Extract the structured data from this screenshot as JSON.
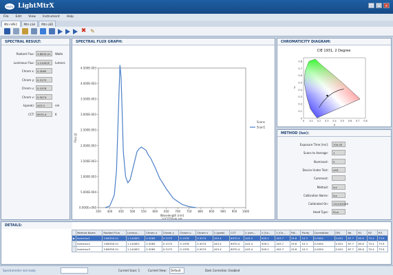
{
  "window": {
    "logo_text": "isuzu",
    "title": "LightMtrX",
    "controls": [
      "–",
      "□",
      "×"
    ]
  },
  "menu": [
    "File",
    "Edit",
    "View",
    "Instrument",
    "Help"
  ],
  "tabs": [
    "Mtri-SPEC",
    "Mtri-LSA",
    "Mtri-LED"
  ],
  "spectral_result": {
    "title": "SPECTRAL RESULT:",
    "rows": [
      {
        "label": "Radiant Flux:",
        "value": "3.8635-01",
        "unit": "Watts"
      },
      {
        "label": "Luminous Flux:",
        "value": "1.14401E",
        "unit": "lumens"
      },
      {
        "label": "Chrom x:",
        "value": "0.3065",
        "unit": ""
      },
      {
        "label": "Chrom y:",
        "value": "0.3175",
        "unit": ""
      },
      {
        "label": "Chrom u:",
        "value": "0.1978",
        "unit": ""
      },
      {
        "label": "Chrom v:",
        "value": "0.3074",
        "unit": ""
      },
      {
        "label": "λ(peak):",
        "value": "443.4",
        "unit": "nm"
      },
      {
        "label": "CCT:",
        "value": "6970.4",
        "unit": "K"
      }
    ]
  },
  "chart_panel_title": "SPECTRAL FLUX GRAPH:",
  "chart_data": {
    "type": "line",
    "xlabel": "Wavelength [nm]",
    "xlabel2": "LUCOThigh.set",
    "ylabel": "Flux (J)",
    "xlim": [
      350,
      1000
    ],
    "ylim": [
      0,
      0.0045
    ],
    "x_ticks": [
      "350",
      "400",
      "450",
      "500",
      "550",
      "600",
      "650",
      "700",
      "750",
      "800",
      "850",
      "900",
      "950",
      "1000"
    ],
    "y_ticks": [
      "0.000E+000",
      "5.000E-004",
      "1.000E-003",
      "1.500E-003",
      "2.000E-003",
      "2.500E-003",
      "3.000E-003",
      "3.500E-003",
      "4.000E-003",
      "4.500E-003"
    ],
    "legend_title": "Scans",
    "series": [
      {
        "name": "Scan1",
        "x": [
          380,
          400,
          420,
          430,
          440,
          445,
          450,
          455,
          460,
          470,
          480,
          490,
          500,
          510,
          520,
          530,
          540,
          550,
          560,
          570,
          580,
          600,
          620,
          650,
          680,
          700,
          720,
          750,
          780
        ],
        "values": [
          0,
          5e-05,
          0.0004,
          0.0012,
          0.0035,
          0.0046,
          0.0042,
          0.003,
          0.0018,
          0.001,
          0.0008,
          0.0009,
          0.0012,
          0.0015,
          0.0018,
          0.0019,
          0.00195,
          0.0019,
          0.00185,
          0.0017,
          0.0016,
          0.0013,
          0.00095,
          0.0006,
          0.0003,
          0.0002,
          0.0001,
          3e-05,
          0
        ]
      }
    ]
  },
  "chromaticity": {
    "title": "CHROMATICITY DIAGRAM:",
    "subtitle": "CIE 1931, 2 Degree",
    "xlabel": "x",
    "ylabel": "y",
    "x_ticks": [
      "0",
      "0.1",
      "0.2",
      "0.3",
      "0.4",
      "0.5",
      "0.6",
      "0.7",
      "0.8"
    ],
    "y_ticks": [
      "0.8",
      "0.7",
      "0.6",
      "0.5",
      "0.4",
      "0.3",
      "0.2",
      "0.1",
      "0"
    ],
    "point": {
      "x": 0.3065,
      "y": 0.3175
    }
  },
  "method": {
    "title": "METHOD (lux):",
    "rows": [
      {
        "label": "Exposure Time [ms]:",
        "value": "700.05"
      },
      {
        "label": "Scans to Average:",
        "value": "1"
      },
      {
        "label": "Illuminant:",
        "value": "5"
      },
      {
        "label": "Device Under Test:",
        "value": "LED"
      },
      {
        "label": "Comment:",
        "value": ""
      },
      {
        "label": "Method:",
        "value": "lux"
      },
      {
        "label": "Calibration Name:",
        "value": "lux"
      },
      {
        "label": "Calibrated On:",
        "value": "12/14/2006"
      },
      {
        "label": "Head Type:",
        "value": "Flux"
      }
    ]
  },
  "details": {
    "title": "DETAILS:",
    "columns": [
      "",
      "Method Name",
      "Radiant Flux",
      "Lumino...",
      "Chrom x",
      "Chrom y",
      "Chrom u",
      "Chrom v",
      "λ (peak)",
      "CCT",
      "λ (cen...",
      "λ (Ce...",
      "λ (Ce...",
      "FW...",
      "Purity",
      "Correlation",
      "CRI",
      "Ra",
      "R1",
      "R2",
      "R3"
    ],
    "rows": [
      [
        "▶",
        "homelux1",
        "3.8635E-01",
        "1.1440E1",
        "0.3065",
        "0.3175",
        "0.1978",
        "0.3074",
        "443.4",
        "6970.4",
        "443.4",
        "509.2",
        "403.7",
        "19.6",
        "10.3",
        "0.0054",
        "0.001",
        "67.7",
        "65.6",
        "70.4",
        "73.9"
      ],
      [
        "",
        "homelux2",
        "3.8635E-01",
        "1.1440E1",
        "0.3065",
        "0.3175",
        "0.1978",
        "0.3074",
        "443.4",
        "6970.4",
        "443.4",
        "509.2",
        "403.7",
        "19.6",
        "10.3",
        "0.0054",
        "0.001",
        "67.7",
        "65.6",
        "70.4",
        "73.9"
      ],
      [
        "",
        "homelux3",
        "3.8635E-01",
        "1.1440E1",
        "0.3065",
        "0.3175",
        "0.1978",
        "0.3074",
        "443.4",
        "6970.4",
        "443.4",
        "509.2",
        "403.7",
        "19.6",
        "10.3",
        "0.0054",
        "0.001",
        "67.7",
        "65.6",
        "70.4",
        "73.9"
      ]
    ]
  },
  "status": {
    "instrument": "Spectrometer not ready",
    "current_scan": "Current Scan: 1",
    "current_view_label": "Current View:",
    "current_view_value": "Default",
    "dark_correction": "Dark Correction: Enabled"
  }
}
